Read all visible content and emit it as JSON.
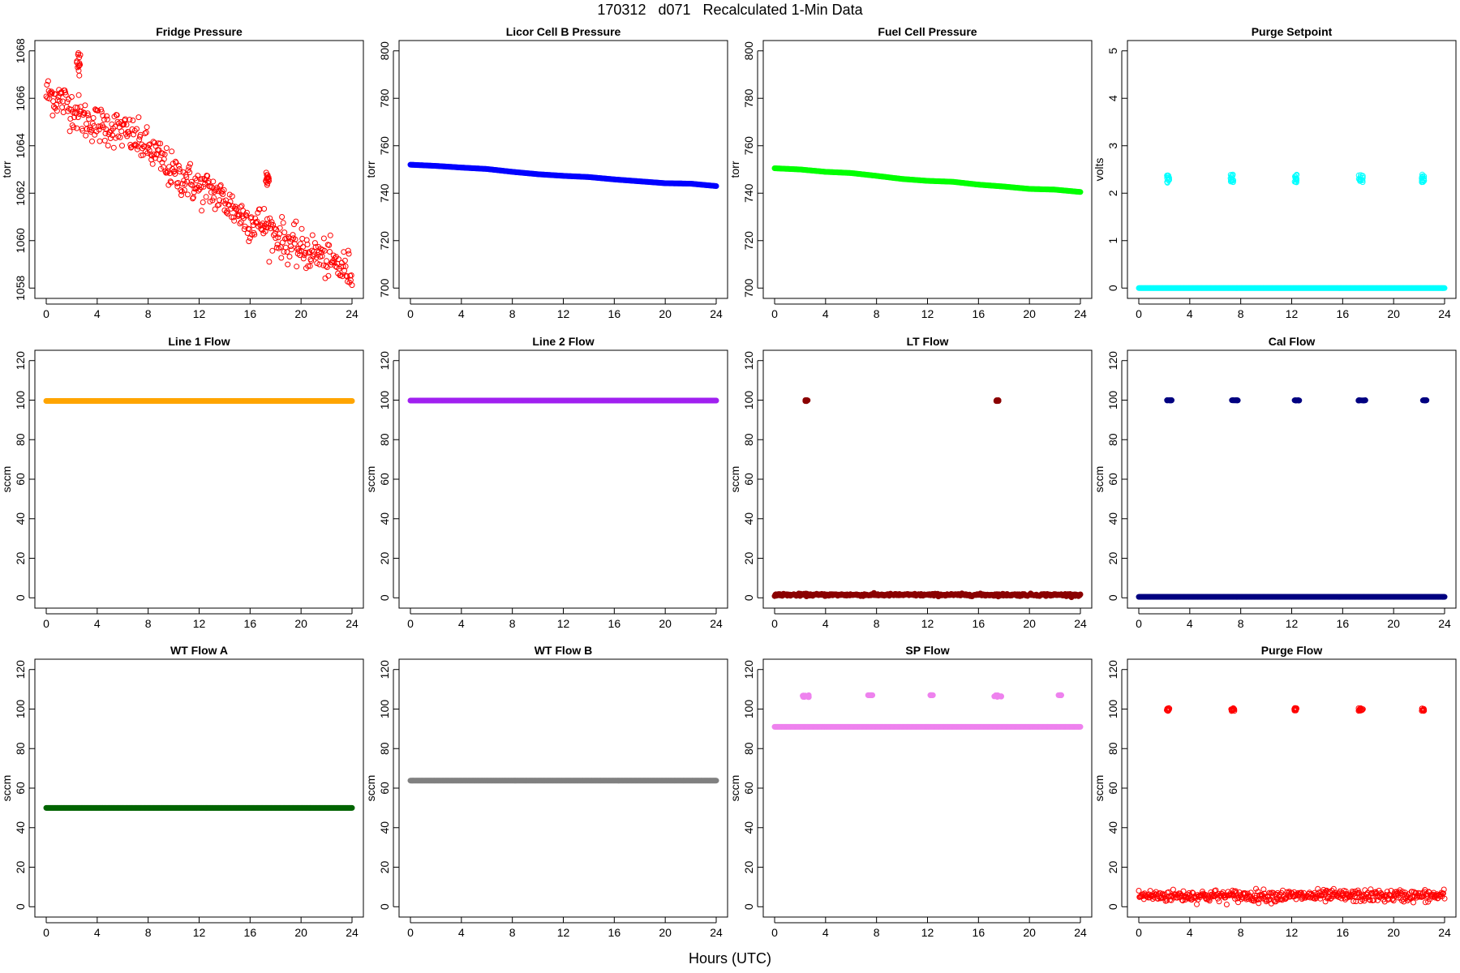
{
  "figure": {
    "title": "170312   d071   Recalculated 1-Min Data",
    "xlabel": "Hours (UTC)"
  },
  "chart_data": [
    {
      "type": "scatter",
      "title": "Fridge Pressure",
      "ylabel": "torr",
      "xlim": [
        0,
        24
      ],
      "ylim": [
        1058,
        1068
      ],
      "xticks": [
        0,
        4,
        8,
        12,
        16,
        20,
        24
      ],
      "yticks": [
        1058,
        1060,
        1062,
        1064,
        1066,
        1068
      ],
      "ytick_rotated": true,
      "color": "#ff0000",
      "marker": "open",
      "trend": [
        [
          0,
          1066.2
        ],
        [
          1,
          1066.0
        ],
        [
          2,
          1065.6
        ],
        [
          3,
          1065.1
        ],
        [
          4,
          1064.9
        ],
        [
          5,
          1064.8
        ],
        [
          6,
          1064.6
        ],
        [
          7,
          1064.3
        ],
        [
          8,
          1063.9
        ],
        [
          9,
          1063.4
        ],
        [
          10,
          1062.8
        ],
        [
          11,
          1062.6
        ],
        [
          12,
          1062.2
        ],
        [
          13,
          1062.1
        ],
        [
          14,
          1061.7
        ],
        [
          15,
          1061.2
        ],
        [
          16,
          1060.8
        ],
        [
          17,
          1060.7
        ],
        [
          18,
          1060.3
        ],
        [
          19,
          1059.9
        ],
        [
          20,
          1059.6
        ],
        [
          21,
          1059.5
        ],
        [
          22,
          1059.2
        ],
        [
          23,
          1058.9
        ],
        [
          24,
          1058.7
        ]
      ],
      "noise": 0.4,
      "clusters": [
        {
          "x": [
            2.4,
            2.7
          ],
          "y": [
            1066.9,
            1068.0
          ]
        },
        {
          "x": [
            17.2,
            17.5
          ],
          "y": [
            1062.3,
            1062.9
          ]
        }
      ]
    },
    {
      "type": "scatter",
      "title": "Licor Cell B Pressure",
      "ylabel": "torr",
      "xlim": [
        0,
        24
      ],
      "ylim": [
        700,
        800
      ],
      "xticks": [
        0,
        4,
        8,
        12,
        16,
        20,
        24
      ],
      "yticks": [
        700,
        720,
        740,
        760,
        780,
        800
      ],
      "ytick_rotated": true,
      "color": "#0000ff",
      "marker": "filled",
      "trend": [
        [
          0,
          752
        ],
        [
          2,
          751.5
        ],
        [
          4,
          750.8
        ],
        [
          6,
          750.2
        ],
        [
          8,
          749.0
        ],
        [
          10,
          748.0
        ],
        [
          12,
          747.3
        ],
        [
          14,
          746.8
        ],
        [
          16,
          745.8
        ],
        [
          18,
          745.0
        ],
        [
          20,
          744.2
        ],
        [
          22,
          744.0
        ],
        [
          24,
          743.0
        ]
      ],
      "noise": 0,
      "clusters": []
    },
    {
      "type": "scatter",
      "title": "Fuel Cell Pressure",
      "ylabel": "torr",
      "xlim": [
        0,
        24
      ],
      "ylim": [
        700,
        800
      ],
      "xticks": [
        0,
        4,
        8,
        12,
        16,
        20,
        24
      ],
      "yticks": [
        700,
        720,
        740,
        760,
        780,
        800
      ],
      "ytick_rotated": true,
      "color": "#00ff00",
      "marker": "filled",
      "trend": [
        [
          0,
          750.5
        ],
        [
          2,
          750
        ],
        [
          4,
          749
        ],
        [
          6,
          748.5
        ],
        [
          8,
          747.3
        ],
        [
          10,
          746
        ],
        [
          12,
          745.2
        ],
        [
          14,
          744.8
        ],
        [
          16,
          743.6
        ],
        [
          18,
          742.8
        ],
        [
          20,
          741.8
        ],
        [
          22,
          741.5
        ],
        [
          24,
          740.5
        ]
      ],
      "noise": 0,
      "clusters": []
    },
    {
      "type": "scatter",
      "title": "Purge Setpoint",
      "ylabel": "volts",
      "xlim": [
        0,
        24
      ],
      "ylim": [
        0,
        5
      ],
      "xticks": [
        0,
        4,
        8,
        12,
        16,
        20,
        24
      ],
      "yticks": [
        0,
        1,
        2,
        3,
        4,
        5
      ],
      "ytick_rotated": true,
      "color": "#00ffff",
      "marker": "filled",
      "trend": [
        [
          0,
          0
        ],
        [
          24,
          0
        ]
      ],
      "noise": 0,
      "clusters": [
        {
          "x": [
            2.2,
            2.4
          ],
          "y": [
            2.22,
            2.4
          ],
          "open": true
        },
        {
          "x": [
            7.2,
            7.5
          ],
          "y": [
            2.22,
            2.4
          ],
          "open": true
        },
        {
          "x": [
            12.2,
            12.4
          ],
          "y": [
            2.22,
            2.4
          ],
          "open": true
        },
        {
          "x": [
            17.2,
            17.6
          ],
          "y": [
            2.22,
            2.4
          ],
          "open": true
        },
        {
          "x": [
            22.2,
            22.4
          ],
          "y": [
            2.22,
            2.4
          ],
          "open": true
        }
      ]
    },
    {
      "type": "scatter",
      "title": "Line 1 Flow",
      "ylabel": "sccm",
      "xlim": [
        0,
        24
      ],
      "ylim": [
        0,
        120
      ],
      "xticks": [
        0,
        4,
        8,
        12,
        16,
        20,
        24
      ],
      "yticks": [
        0,
        20,
        40,
        60,
        80,
        100,
        120
      ],
      "ytick_rotated": true,
      "color": "#ffa500",
      "marker": "filled",
      "trend": [
        [
          0,
          99.6
        ],
        [
          24,
          99.6
        ]
      ],
      "noise": 0,
      "clusters": []
    },
    {
      "type": "scatter",
      "title": "Line 2 Flow",
      "ylabel": "sccm",
      "xlim": [
        0,
        24
      ],
      "ylim": [
        0,
        120
      ],
      "xticks": [
        0,
        4,
        8,
        12,
        16,
        20,
        24
      ],
      "yticks": [
        0,
        20,
        40,
        60,
        80,
        100,
        120
      ],
      "ytick_rotated": true,
      "color": "#a020f0",
      "marker": "filled",
      "trend": [
        [
          0,
          99.8
        ],
        [
          24,
          99.8
        ]
      ],
      "noise": 0,
      "clusters": []
    },
    {
      "type": "scatter",
      "title": "LT Flow",
      "ylabel": "sccm",
      "xlim": [
        0,
        24
      ],
      "ylim": [
        0,
        120
      ],
      "xticks": [
        0,
        4,
        8,
        12,
        16,
        20,
        24
      ],
      "yticks": [
        0,
        20,
        40,
        60,
        80,
        100,
        120
      ],
      "ytick_rotated": true,
      "color": "#8b0000",
      "marker": "filled",
      "trend": [
        [
          0,
          1.5
        ],
        [
          24,
          1.5
        ]
      ],
      "noise": 0.3,
      "clusters": [
        {
          "x": [
            2.4,
            2.6
          ],
          "y": [
            99.5,
            100
          ]
        },
        {
          "x": [
            17.4,
            17.6
          ],
          "y": [
            99.5,
            100
          ]
        }
      ]
    },
    {
      "type": "scatter",
      "title": "Cal Flow",
      "ylabel": "sccm",
      "xlim": [
        0,
        24
      ],
      "ylim": [
        0,
        120
      ],
      "xticks": [
        0,
        4,
        8,
        12,
        16,
        20,
        24
      ],
      "yticks": [
        0,
        20,
        40,
        60,
        80,
        100,
        120
      ],
      "ytick_rotated": true,
      "color": "#000080",
      "marker": "filled",
      "trend": [
        [
          0,
          0.5
        ],
        [
          24,
          0.5
        ]
      ],
      "noise": 0,
      "clusters": [
        {
          "x": [
            2.2,
            2.6
          ],
          "y": [
            99.8,
            100
          ]
        },
        {
          "x": [
            7.3,
            7.8
          ],
          "y": [
            99.8,
            100
          ]
        },
        {
          "x": [
            12.2,
            12.6
          ],
          "y": [
            99.8,
            100
          ]
        },
        {
          "x": [
            17.2,
            17.8
          ],
          "y": [
            99.8,
            100
          ]
        },
        {
          "x": [
            22.2,
            22.6
          ],
          "y": [
            99.8,
            100
          ]
        }
      ]
    },
    {
      "type": "scatter",
      "title": "WT Flow A",
      "ylabel": "sccm",
      "xlim": [
        0,
        24
      ],
      "ylim": [
        0,
        120
      ],
      "xticks": [
        0,
        4,
        8,
        12,
        16,
        20,
        24
      ],
      "yticks": [
        0,
        20,
        40,
        60,
        80,
        100,
        120
      ],
      "ytick_rotated": true,
      "color": "#006400",
      "marker": "filled",
      "trend": [
        [
          0,
          50
        ],
        [
          24,
          50
        ]
      ],
      "noise": 0,
      "clusters": []
    },
    {
      "type": "scatter",
      "title": "WT Flow B",
      "ylabel": "sccm",
      "xlim": [
        0,
        24
      ],
      "ylim": [
        0,
        120
      ],
      "xticks": [
        0,
        4,
        8,
        12,
        16,
        20,
        24
      ],
      "yticks": [
        0,
        20,
        40,
        60,
        80,
        100,
        120
      ],
      "ytick_rotated": true,
      "color": "#808080",
      "marker": "filled",
      "trend": [
        [
          0,
          63.8
        ],
        [
          24,
          63.8
        ]
      ],
      "noise": 0,
      "clusters": []
    },
    {
      "type": "scatter",
      "title": "SP Flow",
      "ylabel": "sccm",
      "xlim": [
        0,
        24
      ],
      "ylim": [
        0,
        120
      ],
      "xticks": [
        0,
        4,
        8,
        12,
        16,
        20,
        24
      ],
      "yticks": [
        0,
        20,
        40,
        60,
        80,
        100,
        120
      ],
      "ytick_rotated": true,
      "color": "#ee82ee",
      "marker": "filled",
      "trend": [
        [
          0,
          91
        ],
        [
          24,
          91
        ]
      ],
      "noise": 0,
      "clusters": [
        {
          "x": [
            2.2,
            2.7
          ],
          "y": [
            106,
            107
          ]
        },
        {
          "x": [
            7.3,
            7.7
          ],
          "y": [
            107,
            107
          ]
        },
        {
          "x": [
            12.2,
            12.5
          ],
          "y": [
            107,
            107
          ]
        },
        {
          "x": [
            17.2,
            17.8
          ],
          "y": [
            106,
            107
          ]
        },
        {
          "x": [
            22.2,
            22.5
          ],
          "y": [
            107,
            107
          ]
        }
      ]
    },
    {
      "type": "scatter",
      "title": "Purge Flow",
      "ylabel": "sccm",
      "xlim": [
        0,
        24
      ],
      "ylim": [
        0,
        120
      ],
      "xticks": [
        0,
        4,
        8,
        12,
        16,
        20,
        24
      ],
      "yticks": [
        0,
        20,
        40,
        60,
        80,
        100,
        120
      ],
      "ytick_rotated": true,
      "color": "#ff0000",
      "marker": "open",
      "trend": [
        [
          0,
          5.5
        ],
        [
          24,
          5.5
        ]
      ],
      "noise": 1.5,
      "clusters": [
        {
          "x": [
            2.2,
            2.4
          ],
          "y": [
            99,
            100.5
          ]
        },
        {
          "x": [
            7.2,
            7.5
          ],
          "y": [
            99,
            100.5
          ]
        },
        {
          "x": [
            12.2,
            12.4
          ],
          "y": [
            99,
            100.5
          ]
        },
        {
          "x": [
            17.2,
            17.6
          ],
          "y": [
            99,
            100.5
          ]
        },
        {
          "x": [
            22.2,
            22.4
          ],
          "y": [
            99,
            100.5
          ]
        }
      ]
    }
  ]
}
